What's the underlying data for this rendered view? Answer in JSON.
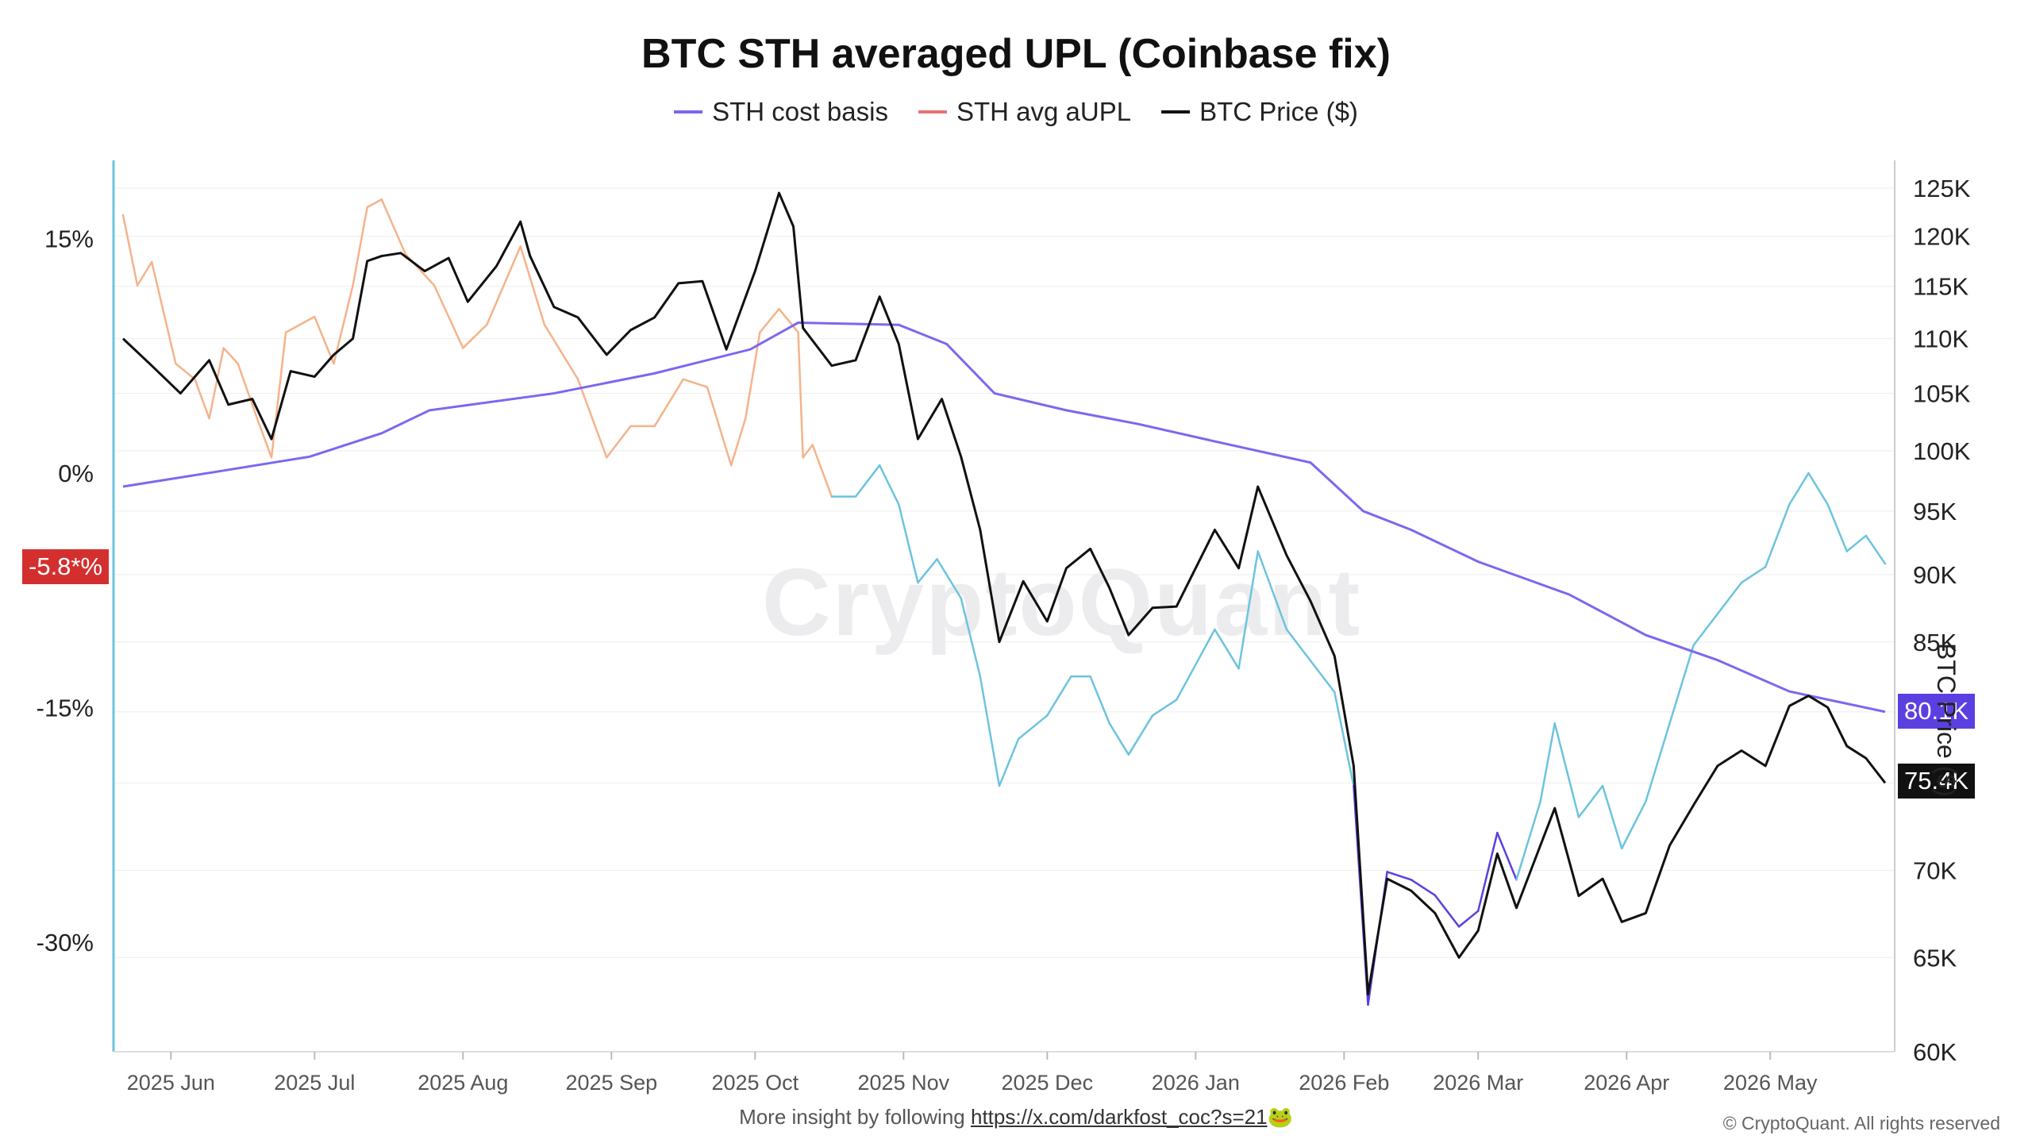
{
  "title": "BTC STH averaged UPL (Coinbase fix)",
  "legend": [
    {
      "label": "STH cost basis",
      "color": "#7b68ee"
    },
    {
      "label": "STH avg aUPL",
      "color": "#e57373"
    },
    {
      "label": "BTC Price ($)",
      "color": "#111111"
    }
  ],
  "watermark": "CryptoQuant",
  "badges": {
    "aupl": "-5.8*%",
    "cost_basis": "80.1K",
    "price": "75.4K"
  },
  "footer": {
    "text": "More insight by following ",
    "link": "https://x.com/darkfost_coc?s=21",
    "emoji": "🐸"
  },
  "copyright": "© CryptoQuant. All rights reserved",
  "chart_data": {
    "type": "line",
    "title": "BTC STH averaged UPL (Coinbase fix)",
    "ylabel_right": "BTC Price ($)",
    "x_ticks": [
      "2025 Jun",
      "2025 Jul",
      "2025 Aug",
      "2025 Sep",
      "2025 Oct",
      "2025 Nov",
      "2025 Dec",
      "2026 Jan",
      "2026 Feb",
      "2026 Mar",
      "2026 Apr",
      "2026 May"
    ],
    "x_domain": [
      "2025-05-22",
      "2026-05-25"
    ],
    "y_left_ticks": [
      "15%",
      "0%",
      "-15%",
      "-30%"
    ],
    "y_left_range": [
      -37,
      20
    ],
    "y_right_ticks": [
      "125K",
      "120K",
      "115K",
      "110K",
      "105K",
      "100K",
      "95K",
      "90K",
      "85K",
      "80.1K",
      "75.4K",
      "70K",
      "65K",
      "60K"
    ],
    "y_right_scale": "log",
    "y_right_range": [
      60000,
      128000
    ],
    "grid": true,
    "aupl_colors": {
      "positive": "#f5b38a",
      "negative": "#6cc4de",
      "deep": "#5b3fe0"
    },
    "series": [
      {
        "name": "BTC Price ($)",
        "axis": "right",
        "values": [
          [
            "2025-05-22",
            110000
          ],
          [
            "2025-05-28",
            107500
          ],
          [
            "2025-06-03",
            105000
          ],
          [
            "2025-06-09",
            108000
          ],
          [
            "2025-06-13",
            104000
          ],
          [
            "2025-06-18",
            104500
          ],
          [
            "2025-06-22",
            101000
          ],
          [
            "2025-06-26",
            107000
          ],
          [
            "2025-07-01",
            106500
          ],
          [
            "2025-07-05",
            108500
          ],
          [
            "2025-07-09",
            110000
          ],
          [
            "2025-07-12",
            117500
          ],
          [
            "2025-07-15",
            118000
          ],
          [
            "2025-07-19",
            118300
          ],
          [
            "2025-07-24",
            116500
          ],
          [
            "2025-07-29",
            117800
          ],
          [
            "2025-08-02",
            113500
          ],
          [
            "2025-08-08",
            117000
          ],
          [
            "2025-08-13",
            121500
          ],
          [
            "2025-08-15",
            118000
          ],
          [
            "2025-08-20",
            113000
          ],
          [
            "2025-08-25",
            112000
          ],
          [
            "2025-08-31",
            108500
          ],
          [
            "2025-09-05",
            110800
          ],
          [
            "2025-09-10",
            112000
          ],
          [
            "2025-09-15",
            115300
          ],
          [
            "2025-09-20",
            115500
          ],
          [
            "2025-09-25",
            109000
          ],
          [
            "2025-10-01",
            116500
          ],
          [
            "2025-10-06",
            124500
          ],
          [
            "2025-10-09",
            121000
          ],
          [
            "2025-10-11",
            111000
          ],
          [
            "2025-10-17",
            107500
          ],
          [
            "2025-10-22",
            108000
          ],
          [
            "2025-10-27",
            114000
          ],
          [
            "2025-10-31",
            109500
          ],
          [
            "2025-11-04",
            101000
          ],
          [
            "2025-11-09",
            104500
          ],
          [
            "2025-11-13",
            99500
          ],
          [
            "2025-11-17",
            93500
          ],
          [
            "2025-11-21",
            85000
          ],
          [
            "2025-11-26",
            89500
          ],
          [
            "2025-12-01",
            86500
          ],
          [
            "2025-12-05",
            90500
          ],
          [
            "2025-12-10",
            92000
          ],
          [
            "2025-12-14",
            89000
          ],
          [
            "2025-12-18",
            85500
          ],
          [
            "2025-12-23",
            87500
          ],
          [
            "2025-12-28",
            87600
          ],
          [
            "2026-01-05",
            93500
          ],
          [
            "2026-01-10",
            90500
          ],
          [
            "2026-01-14",
            97000
          ],
          [
            "2026-01-20",
            91500
          ],
          [
            "2026-01-25",
            88000
          ],
          [
            "2026-01-30",
            84000
          ],
          [
            "2026-02-03",
            76500
          ],
          [
            "2026-02-06",
            63000
          ],
          [
            "2026-02-10",
            69500
          ],
          [
            "2026-02-15",
            68800
          ],
          [
            "2026-02-20",
            67500
          ],
          [
            "2026-02-25",
            65000
          ],
          [
            "2026-03-01",
            66500
          ],
          [
            "2026-03-05",
            71000
          ],
          [
            "2026-03-09",
            67800
          ],
          [
            "2026-03-14",
            71500
          ],
          [
            "2026-03-17",
            73800
          ],
          [
            "2026-03-22",
            68500
          ],
          [
            "2026-03-27",
            69500
          ],
          [
            "2026-03-31",
            67000
          ],
          [
            "2026-04-05",
            67500
          ],
          [
            "2026-04-10",
            71500
          ],
          [
            "2026-04-15",
            74000
          ],
          [
            "2026-04-20",
            76500
          ],
          [
            "2026-04-25",
            77500
          ],
          [
            "2026-04-30",
            76500
          ],
          [
            "2026-05-05",
            80500
          ],
          [
            "2026-05-09",
            81200
          ],
          [
            "2026-05-13",
            80400
          ],
          [
            "2026-05-17",
            77800
          ],
          [
            "2026-05-21",
            77000
          ],
          [
            "2026-05-25",
            75400
          ]
        ]
      },
      {
        "name": "STH cost basis",
        "axis": "right",
        "values": [
          [
            "2025-05-22",
            97000
          ],
          [
            "2025-06-10",
            98200
          ],
          [
            "2025-06-30",
            99500
          ],
          [
            "2025-07-15",
            101500
          ],
          [
            "2025-07-25",
            103500
          ],
          [
            "2025-08-20",
            105000
          ],
          [
            "2025-09-10",
            106800
          ],
          [
            "2025-09-30",
            109000
          ],
          [
            "2025-10-10",
            111500
          ],
          [
            "2025-10-31",
            111300
          ],
          [
            "2025-11-10",
            109500
          ],
          [
            "2025-11-20",
            105000
          ],
          [
            "2025-12-05",
            103500
          ],
          [
            "2025-12-20",
            102300
          ],
          [
            "2026-01-05",
            100800
          ],
          [
            "2026-01-25",
            99000
          ],
          [
            "2026-02-05",
            95000
          ],
          [
            "2026-02-15",
            93500
          ],
          [
            "2026-03-01",
            91000
          ],
          [
            "2026-03-20",
            88500
          ],
          [
            "2026-04-05",
            85500
          ],
          [
            "2026-04-20",
            83700
          ],
          [
            "2026-05-05",
            81500
          ],
          [
            "2026-05-25",
            80100
          ]
        ]
      },
      {
        "name": "STH avg aUPL",
        "axis": "left",
        "unit": "%",
        "values": [
          [
            "2025-05-22",
            16.5
          ],
          [
            "2025-05-25",
            12
          ],
          [
            "2025-05-28",
            13.5
          ],
          [
            "2025-06-02",
            7
          ],
          [
            "2025-06-06",
            6
          ],
          [
            "2025-06-09",
            3.5
          ],
          [
            "2025-06-12",
            8
          ],
          [
            "2025-06-15",
            7
          ],
          [
            "2025-06-19",
            3.5
          ],
          [
            "2025-06-22",
            1
          ],
          [
            "2025-06-25",
            9
          ],
          [
            "2025-07-01",
            10
          ],
          [
            "2025-07-05",
            7
          ],
          [
            "2025-07-09",
            12
          ],
          [
            "2025-07-12",
            17
          ],
          [
            "2025-07-15",
            17.5
          ],
          [
            "2025-07-20",
            14
          ],
          [
            "2025-07-26",
            12
          ],
          [
            "2025-08-01",
            8
          ],
          [
            "2025-08-06",
            9.5
          ],
          [
            "2025-08-13",
            14.5
          ],
          [
            "2025-08-18",
            9.5
          ],
          [
            "2025-08-25",
            6
          ],
          [
            "2025-08-31",
            1
          ],
          [
            "2025-09-05",
            3
          ],
          [
            "2025-09-10",
            3
          ],
          [
            "2025-09-16",
            6
          ],
          [
            "2025-09-21",
            5.5
          ],
          [
            "2025-09-26",
            0.5
          ],
          [
            "2025-09-29",
            3.5
          ],
          [
            "2025-10-02",
            9
          ],
          [
            "2025-10-06",
            10.5
          ],
          [
            "2025-10-10",
            9
          ],
          [
            "2025-10-11",
            1
          ],
          [
            "2025-10-13",
            1.8
          ],
          [
            "2025-10-17",
            -1.5
          ],
          [
            "2025-10-22",
            -1.5
          ],
          [
            "2025-10-27",
            0.5
          ],
          [
            "2025-10-31",
            -2
          ],
          [
            "2025-11-04",
            -7
          ],
          [
            "2025-11-08",
            -5.5
          ],
          [
            "2025-11-13",
            -8
          ],
          [
            "2025-11-17",
            -13
          ],
          [
            "2025-11-21",
            -20
          ],
          [
            "2025-11-25",
            -17
          ],
          [
            "2025-12-01",
            -15.5
          ],
          [
            "2025-12-06",
            -13
          ],
          [
            "2025-12-10",
            -13
          ],
          [
            "2025-12-14",
            -16
          ],
          [
            "2025-12-18",
            -18
          ],
          [
            "2025-12-23",
            -15.5
          ],
          [
            "2025-12-28",
            -14.5
          ],
          [
            "2026-01-05",
            -10
          ],
          [
            "2026-01-10",
            -12.5
          ],
          [
            "2026-01-14",
            -5
          ],
          [
            "2026-01-20",
            -10
          ],
          [
            "2026-01-25",
            -12
          ],
          [
            "2026-01-30",
            -14
          ],
          [
            "2026-02-03",
            -20
          ],
          [
            "2026-02-06",
            -34
          ],
          [
            "2026-02-10",
            -25.5
          ],
          [
            "2026-02-15",
            -26
          ],
          [
            "2026-02-20",
            -27
          ],
          [
            "2026-02-25",
            -29
          ],
          [
            "2026-03-01",
            -28
          ],
          [
            "2026-03-05",
            -23
          ],
          [
            "2026-03-09",
            -26
          ],
          [
            "2026-03-14",
            -21
          ],
          [
            "2026-03-17",
            -16
          ],
          [
            "2026-03-22",
            -22
          ],
          [
            "2026-03-27",
            -20
          ],
          [
            "2026-03-31",
            -24
          ],
          [
            "2026-04-05",
            -21
          ],
          [
            "2026-04-10",
            -16
          ],
          [
            "2026-04-15",
            -11
          ],
          [
            "2026-04-20",
            -9
          ],
          [
            "2026-04-25",
            -7
          ],
          [
            "2026-04-30",
            -6
          ],
          [
            "2026-05-05",
            -2
          ],
          [
            "2026-05-09",
            0
          ],
          [
            "2026-05-13",
            -2
          ],
          [
            "2026-05-17",
            -5
          ],
          [
            "2026-05-21",
            -4
          ],
          [
            "2026-05-25",
            -5.8
          ]
        ]
      }
    ]
  }
}
